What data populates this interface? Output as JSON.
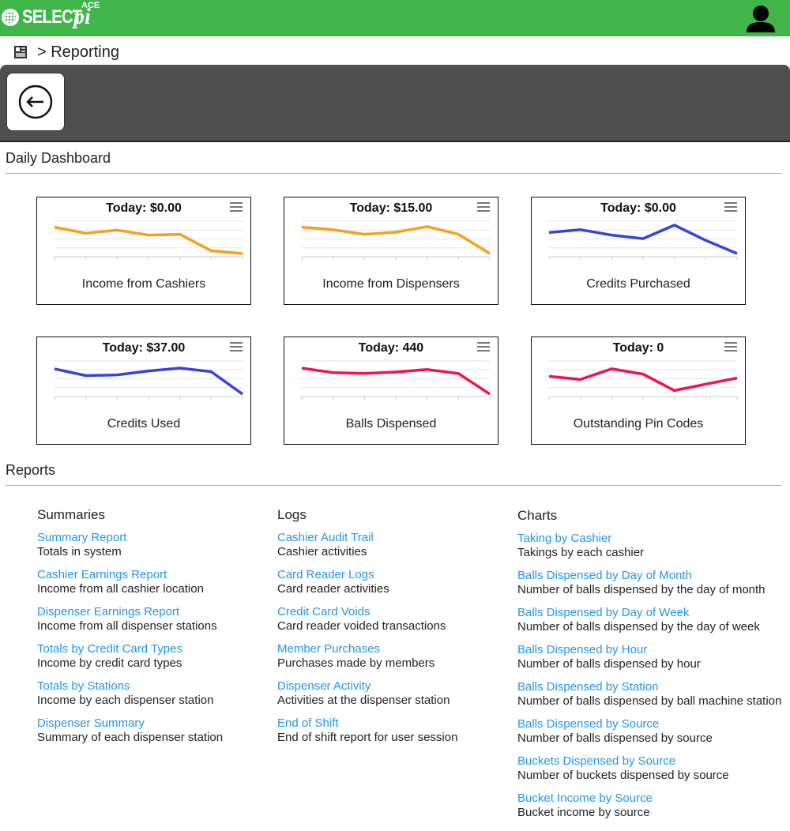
{
  "header": {
    "logo_brand": "SELECT",
    "logo_pi": "pi",
    "logo_ace": "ACE",
    "user_icon": "user-icon",
    "brand_color": "#3fb54a"
  },
  "breadcrumb": {
    "icon": "dashboard-icon",
    "text": "> Reporting"
  },
  "toolbar": {
    "back_icon": "arrow-left-icon"
  },
  "dashboard": {
    "title": "Daily Dashboard",
    "cards": [
      {
        "today": "Today: $0.00",
        "label": "Income from Cashiers",
        "color": "#f5a11c",
        "values": [
          0.83,
          0.66,
          0.75,
          0.61,
          0.63,
          0.17,
          0.09
        ]
      },
      {
        "today": "Today: $15.00",
        "label": "Income from Dispensers",
        "color": "#f5a11c",
        "values": [
          0.83,
          0.76,
          0.63,
          0.69,
          0.85,
          0.63,
          0.09
        ]
      },
      {
        "today": "Today: $0.00",
        "label": "Credits Purchased",
        "color": "#3745d6",
        "values": [
          0.68,
          0.76,
          0.61,
          0.51,
          0.89,
          0.46,
          0.09
        ]
      },
      {
        "today": "Today: $37.00",
        "label": "Credits Used",
        "color": "#3745d6",
        "values": [
          0.78,
          0.59,
          0.61,
          0.72,
          0.8,
          0.7,
          0.07
        ]
      },
      {
        "today": "Today: 440",
        "label": "Balls Dispensed",
        "color": "#f2124e",
        "values": [
          0.8,
          0.67,
          0.65,
          0.69,
          0.76,
          0.65,
          0.07
        ]
      },
      {
        "today": "Today: 0",
        "label": "Outstanding Pin Codes",
        "color": "#f2124e",
        "values": [
          0.57,
          0.48,
          0.78,
          0.63,
          0.17,
          0.35,
          0.52
        ]
      }
    ]
  },
  "reports": {
    "title": "Reports",
    "columns": [
      {
        "heading": "Summaries",
        "items": [
          {
            "link": "Summary Report",
            "desc": "Totals in system"
          },
          {
            "link": "Cashier Earnings Report",
            "desc": "Income from all cashier location"
          },
          {
            "link": "Dispenser Earnings Report",
            "desc": "Income from all dispenser stations"
          },
          {
            "link": "Totals by Credit Card Types",
            "desc": "Income by credit card types"
          },
          {
            "link": "Totals by Stations",
            "desc": "Income by each dispenser station"
          },
          {
            "link": "Dispenser Summary",
            "desc": "Summary of each dispenser station"
          }
        ]
      },
      {
        "heading": "Logs",
        "items": [
          {
            "link": "Cashier Audit Trail",
            "desc": "Cashier activities"
          },
          {
            "link": "Card Reader Logs",
            "desc": "Card reader activities"
          },
          {
            "link": "Credit Card Voids",
            "desc": "Card reader voided transactions"
          },
          {
            "link": "Member Purchases",
            "desc": "Purchases made by members"
          },
          {
            "link": "Dispenser Activity",
            "desc": "Activities at the dispenser station"
          },
          {
            "link": "End of Shift",
            "desc": "End of shift report for user session"
          }
        ]
      },
      {
        "heading": "Charts",
        "items": [
          {
            "link": "Taking by Cashier",
            "desc": "Takings by each cashier"
          },
          {
            "link": "Balls Dispensed by Day of Month",
            "desc": "Number of balls dispensed by the day of month"
          },
          {
            "link": "Balls Dispensed by Day of Week",
            "desc": "Number of balls dispensed by the day of week"
          },
          {
            "link": "Balls Dispensed by Hour",
            "desc": "Number of balls dispensed by hour"
          },
          {
            "link": "Balls Dispensed by Station",
            "desc": "Number of balls dispensed by ball machine station"
          },
          {
            "link": "Balls Dispensed by Source",
            "desc": "Number of balls dispensed by source"
          },
          {
            "link": "Buckets Dispensed by Source",
            "desc": "Number of buckets dispensed by source"
          },
          {
            "link": "Bucket Income by Source",
            "desc": "Bucket income by source"
          }
        ]
      }
    ]
  }
}
